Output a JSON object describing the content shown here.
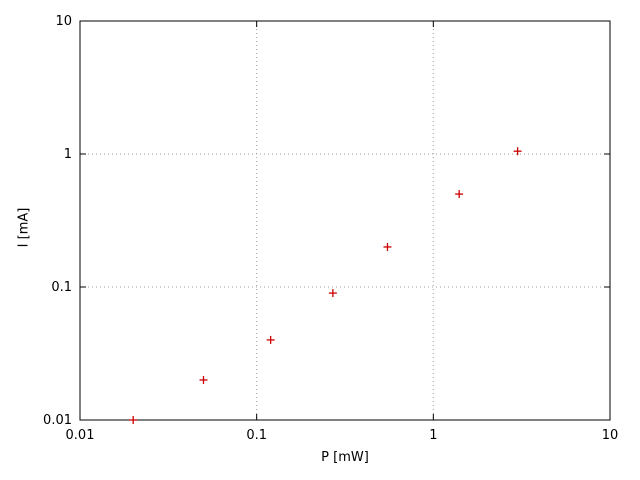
{
  "chart_data": {
    "type": "scatter",
    "title": "",
    "xlabel": "P [mW]",
    "ylabel": "I [mA]",
    "xscale": "log",
    "yscale": "log",
    "xlim": [
      0.01,
      10
    ],
    "ylim": [
      0.01,
      10
    ],
    "x_ticks": [
      "0.01",
      "0.1",
      "1",
      "10"
    ],
    "y_ticks": [
      "0.01",
      "0.1",
      "1",
      "10"
    ],
    "grid": true,
    "legend": "none",
    "marker": "plus",
    "marker_color": "#cc0000",
    "points": [
      {
        "x": 0.02,
        "y": 0.01
      },
      {
        "x": 0.05,
        "y": 0.02
      },
      {
        "x": 0.12,
        "y": 0.04
      },
      {
        "x": 0.27,
        "y": 0.09
      },
      {
        "x": 0.55,
        "y": 0.2
      },
      {
        "x": 1.4,
        "y": 0.5
      },
      {
        "x": 3.0,
        "y": 1.05
      }
    ]
  },
  "colors": {
    "background": "#ffffff",
    "axis": "#000000",
    "grid": "#a0a0a0",
    "tick_text": "#000000"
  }
}
